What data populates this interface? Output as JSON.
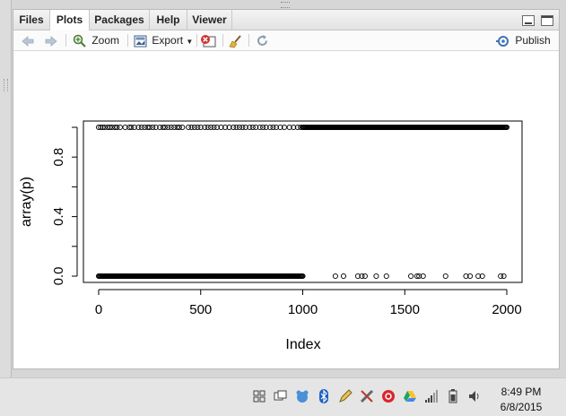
{
  "tabs": [
    "Files",
    "Plots",
    "Packages",
    "Help",
    "Viewer"
  ],
  "active_tab": "Plots",
  "toolbar": {
    "zoom_label": "Zoom",
    "export_label": "Export",
    "publish_label": "Publish"
  },
  "chart_data": {
    "type": "scatter",
    "xlabel": "Index",
    "ylabel": "array(p)",
    "xlim": [
      0,
      2000
    ],
    "ylim": [
      0,
      1
    ],
    "x_ticks": [
      "0",
      "500",
      "1000",
      "1500",
      "2000"
    ],
    "y_ticks": [
      "0.0",
      "0.4",
      "0.8"
    ],
    "series": [
      {
        "description": "points at y=1",
        "y": 1,
        "dense_ranges": [
          [
            1000,
            2000
          ]
        ],
        "sparse_x": [
          0,
          10,
          20,
          30,
          45,
          55,
          65,
          80,
          90,
          105,
          130,
          150,
          160,
          175,
          195,
          210,
          225,
          240,
          250,
          265,
          280,
          300,
          315,
          325,
          340,
          355,
          370,
          385,
          395,
          410,
          440,
          455,
          470,
          485,
          500,
          520,
          535,
          550,
          565,
          580,
          600,
          620,
          640,
          660,
          675,
          690,
          705,
          720,
          740,
          755,
          770,
          790,
          805,
          820,
          840,
          855,
          870,
          890,
          910,
          935,
          955,
          975,
          990
        ]
      },
      {
        "description": "points at y=0",
        "y": 0,
        "dense_ranges": [
          [
            0,
            1000
          ]
        ],
        "sparse_x": [
          1160,
          1200,
          1270,
          1290,
          1305,
          1360,
          1410,
          1530,
          1560,
          1570,
          1590,
          1700,
          1800,
          1820,
          1860,
          1880,
          1970,
          1985
        ]
      }
    ]
  },
  "taskbar": {
    "time": "8:49 PM",
    "date": "6/8/2015"
  }
}
